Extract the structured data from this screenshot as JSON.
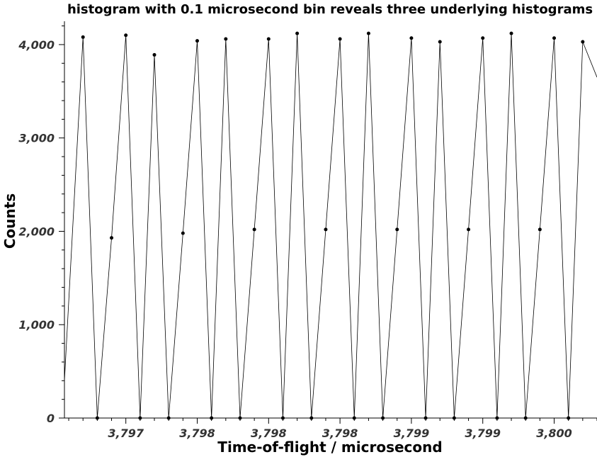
{
  "chart_data": {
    "type": "line",
    "title": "histogram with 0.1 microsecond bin reveals three underlying histograms",
    "xlabel": "Time-of-flight / microsecond",
    "ylabel": "Counts",
    "xlim": [
      3796.57,
      3800.3
    ],
    "ylim": [
      0,
      4250
    ],
    "x_ticks": [
      3797,
      3797.5,
      3798,
      3798.5,
      3799,
      3799.5,
      3800
    ],
    "x_tick_labels": [
      "3,797",
      "3,798",
      "3,798",
      "3,798",
      "3,799",
      "3,799",
      "3,800"
    ],
    "y_ticks": [
      0,
      1000,
      2000,
      3000,
      4000
    ],
    "y_tick_labels": [
      "0",
      "1,000",
      "2,000",
      "3,000",
      "4,000"
    ],
    "grid": false,
    "legend": "none",
    "series": [
      {
        "x": [
          3796.57,
          3796.7,
          3796.8,
          3796.9,
          3797.0,
          3797.1,
          3797.2,
          3797.3,
          3797.4,
          3797.5,
          3797.6,
          3797.7,
          3797.8,
          3797.9,
          3798.0,
          3798.1,
          3798.2,
          3798.3,
          3798.4,
          3798.5,
          3798.6,
          3798.7,
          3798.8,
          3798.9,
          3799.0,
          3799.1,
          3799.2,
          3799.3,
          3799.4,
          3799.5,
          3799.6,
          3799.7,
          3799.8,
          3799.9,
          3800.0,
          3800.1,
          3800.2,
          3800.3
        ],
        "values": [
          400,
          4080,
          0,
          1930,
          4100,
          0,
          3890,
          0,
          1980,
          4040,
          0,
          4060,
          0,
          2020,
          4060,
          0,
          4120,
          0,
          2020,
          4060,
          0,
          4120,
          0,
          2020,
          4070,
          0,
          4030,
          0,
          2020,
          4070,
          0,
          4120,
          0,
          2020,
          4070,
          0,
          4030,
          3650
        ],
        "markers": [
          false,
          true,
          true,
          true,
          true,
          true,
          true,
          true,
          true,
          true,
          true,
          true,
          true,
          true,
          true,
          true,
          true,
          true,
          true,
          true,
          true,
          true,
          true,
          true,
          true,
          true,
          true,
          true,
          true,
          true,
          true,
          true,
          true,
          true,
          true,
          true,
          true,
          false
        ]
      }
    ]
  }
}
